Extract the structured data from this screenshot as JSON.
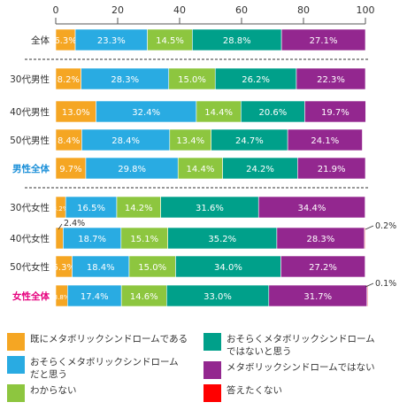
{
  "chart_data": {
    "type": "bar",
    "orientation": "horizontal",
    "stacked": true,
    "xlim": [
      0,
      100
    ],
    "xticks": [
      0,
      20,
      40,
      60,
      80,
      100
    ],
    "categories": [
      "全体",
      "30代男性",
      "40代男性",
      "50代男性",
      "男性全体",
      "30代女性",
      "40代女性",
      "50代女性",
      "女性全体"
    ],
    "highlight_categories": [
      "男性全体",
      "女性全体"
    ],
    "highlight_colors": {
      "男性全体": "#1a8fd8",
      "女性全体": "#e6007e"
    },
    "series": [
      {
        "name": "既にメタボリックシンドロームである",
        "color": "#f5a623",
        "values": [
          6.3,
          8.2,
          13.0,
          8.4,
          9.7,
          3.2,
          2.4,
          5.3,
          3.8
        ],
        "labels": [
          "6.3%",
          "8.2%",
          "13.0%",
          "8.4%",
          "9.7%",
          "3.2%",
          "",
          "5.3%",
          "3.8%"
        ]
      },
      {
        "name": "おそらくメタボリックシンドロームだと思う",
        "color": "#29abe2",
        "values": [
          23.3,
          28.3,
          32.4,
          28.4,
          29.8,
          16.5,
          18.7,
          18.4,
          17.4
        ],
        "labels": [
          "23.3%",
          "28.3%",
          "32.4%",
          "28.4%",
          "29.8%",
          "16.5%",
          "18.7%",
          "18.4%",
          "17.4%"
        ]
      },
      {
        "name": "わからない",
        "color": "#8dc63f",
        "values": [
          14.5,
          15.0,
          14.4,
          13.4,
          14.4,
          14.2,
          15.1,
          15.0,
          14.6
        ],
        "labels": [
          "14.5%",
          "15.0%",
          "14.4%",
          "13.4%",
          "14.4%",
          "14.2%",
          "15.1%",
          "15.0%",
          "14.6%"
        ]
      },
      {
        "name": "おそらくメタボリックシンドロームではないと思う",
        "color": "#00a08a",
        "values": [
          28.8,
          26.2,
          20.6,
          24.7,
          24.2,
          31.6,
          35.2,
          34.0,
          33.0
        ],
        "labels": [
          "28.8%",
          "26.2%",
          "20.6%",
          "24.7%",
          "24.2%",
          "31.6%",
          "35.2%",
          "34.0%",
          "33.0%"
        ]
      },
      {
        "name": "メタボリックシンドロームではない",
        "color": "#93278f",
        "values": [
          27.1,
          22.3,
          19.7,
          24.1,
          21.9,
          34.4,
          28.3,
          27.2,
          31.7
        ],
        "labels": [
          "27.1%",
          "22.3%",
          "19.7%",
          "24.1%",
          "21.9%",
          "34.4%",
          "28.3%",
          "27.2%",
          "31.7%"
        ]
      },
      {
        "name": "答えたくない",
        "color": "#ff0000",
        "values": [
          0,
          0,
          0,
          0,
          0,
          0,
          0.2,
          0,
          0.1
        ],
        "labels": [
          "",
          "",
          "",
          "",
          "",
          "",
          "",
          "",
          ""
        ]
      }
    ],
    "annotations": [
      {
        "category": "40代女性",
        "text": "2.4%",
        "side": "above-left"
      },
      {
        "category": "40代女性",
        "text": "0.2%",
        "side": "right"
      },
      {
        "category": "女性全体",
        "text": "0.1%",
        "side": "right"
      }
    ],
    "legend": {
      "position": "bottom",
      "columns": 2,
      "items": [
        {
          "label": "既にメタボリックシンドロームである",
          "color": "#f5a623"
        },
        {
          "label": "おそらくメタボリックシンドローム\nだと思う",
          "color": "#29abe2"
        },
        {
          "label": "わからない",
          "color": "#8dc63f"
        },
        {
          "label": "おそらくメタボリックシンドローム\nではないと思う",
          "color": "#00a08a"
        },
        {
          "label": "メタボリックシンドロームではない",
          "color": "#93278f"
        },
        {
          "label": "答えたくない",
          "color": "#ff0000"
        }
      ]
    }
  }
}
